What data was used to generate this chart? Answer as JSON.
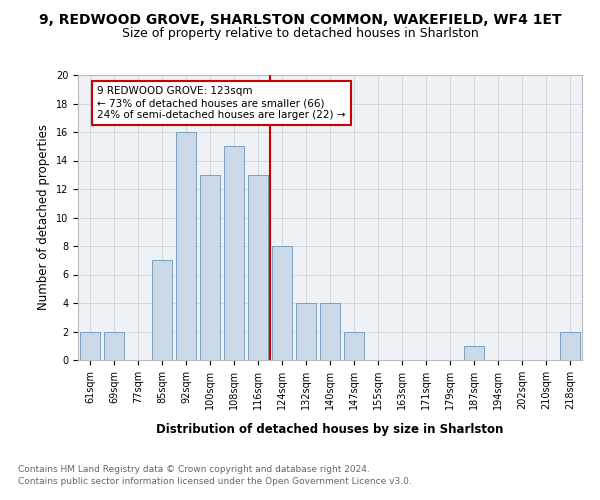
{
  "title": "9, REDWOOD GROVE, SHARLSTON COMMON, WAKEFIELD, WF4 1ET",
  "subtitle": "Size of property relative to detached houses in Sharlston",
  "xlabel": "Distribution of detached houses by size in Sharlston",
  "ylabel": "Number of detached properties",
  "categories": [
    "61sqm",
    "69sqm",
    "77sqm",
    "85sqm",
    "92sqm",
    "100sqm",
    "108sqm",
    "116sqm",
    "124sqm",
    "132sqm",
    "140sqm",
    "147sqm",
    "155sqm",
    "163sqm",
    "171sqm",
    "179sqm",
    "187sqm",
    "194sqm",
    "202sqm",
    "210sqm",
    "218sqm"
  ],
  "values": [
    2,
    2,
    0,
    7,
    16,
    13,
    15,
    13,
    8,
    4,
    4,
    2,
    0,
    0,
    0,
    0,
    1,
    0,
    0,
    0,
    2
  ],
  "bar_color": "#ccd9e8",
  "bar_edge_color": "#7aa0be",
  "marker_line_color": "#cc0000",
  "annotation_box_color": "#ffffff",
  "annotation_box_edge": "#cc0000",
  "marker_label": "9 REDWOOD GROVE: 123sqm",
  "annotation_line1": "← 73% of detached houses are smaller (66)",
  "annotation_line2": "24% of semi-detached houses are larger (22) →",
  "ylim": [
    0,
    20
  ],
  "yticks": [
    0,
    2,
    4,
    6,
    8,
    10,
    12,
    14,
    16,
    18,
    20
  ],
  "grid_color": "#d0d8e0",
  "bg_color": "#eef2f7",
  "footer_line1": "Contains HM Land Registry data © Crown copyright and database right 2024.",
  "footer_line2": "Contains public sector information licensed under the Open Government Licence v3.0.",
  "title_fontsize": 10,
  "subtitle_fontsize": 9,
  "axis_label_fontsize": 8.5,
  "tick_fontsize": 7,
  "annotation_fontsize": 7.5,
  "footer_fontsize": 6.5,
  "marker_bar_index": 8
}
